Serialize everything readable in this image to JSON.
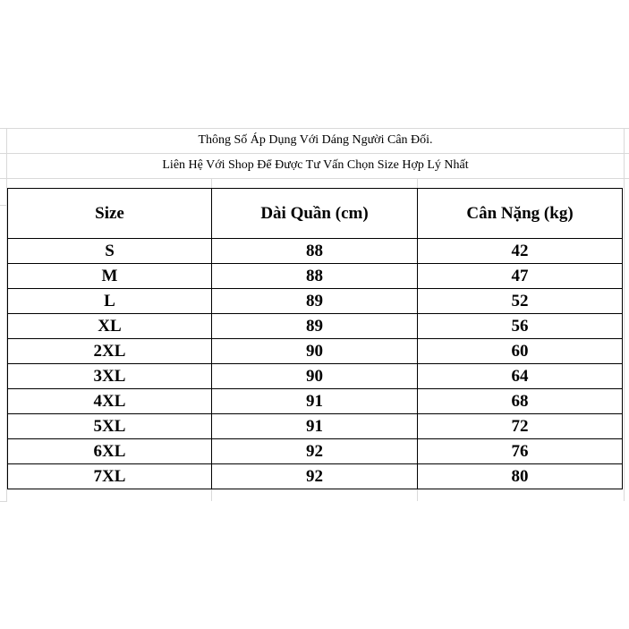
{
  "notes": {
    "line1": "Thông Số Áp Dụng Với Dáng Người Cân Đối.",
    "line2": "Liên Hệ Với Shop Để Được Tư Vấn Chọn Size Hợp Lý Nhất"
  },
  "table": {
    "headers": [
      "Size",
      "Dài Quần (cm)",
      "Cân Nặng (kg)"
    ],
    "rows": [
      [
        "S",
        "88",
        "42"
      ],
      [
        "M",
        "88",
        "47"
      ],
      [
        "L",
        "89",
        "52"
      ],
      [
        "XL",
        "89",
        "56"
      ],
      [
        "2XL",
        "90",
        "60"
      ],
      [
        "3XL",
        "90",
        "64"
      ],
      [
        "4XL",
        "91",
        "68"
      ],
      [
        "5XL",
        "91",
        "72"
      ],
      [
        "6XL",
        "92",
        "76"
      ],
      [
        "7XL",
        "92",
        "80"
      ]
    ]
  }
}
